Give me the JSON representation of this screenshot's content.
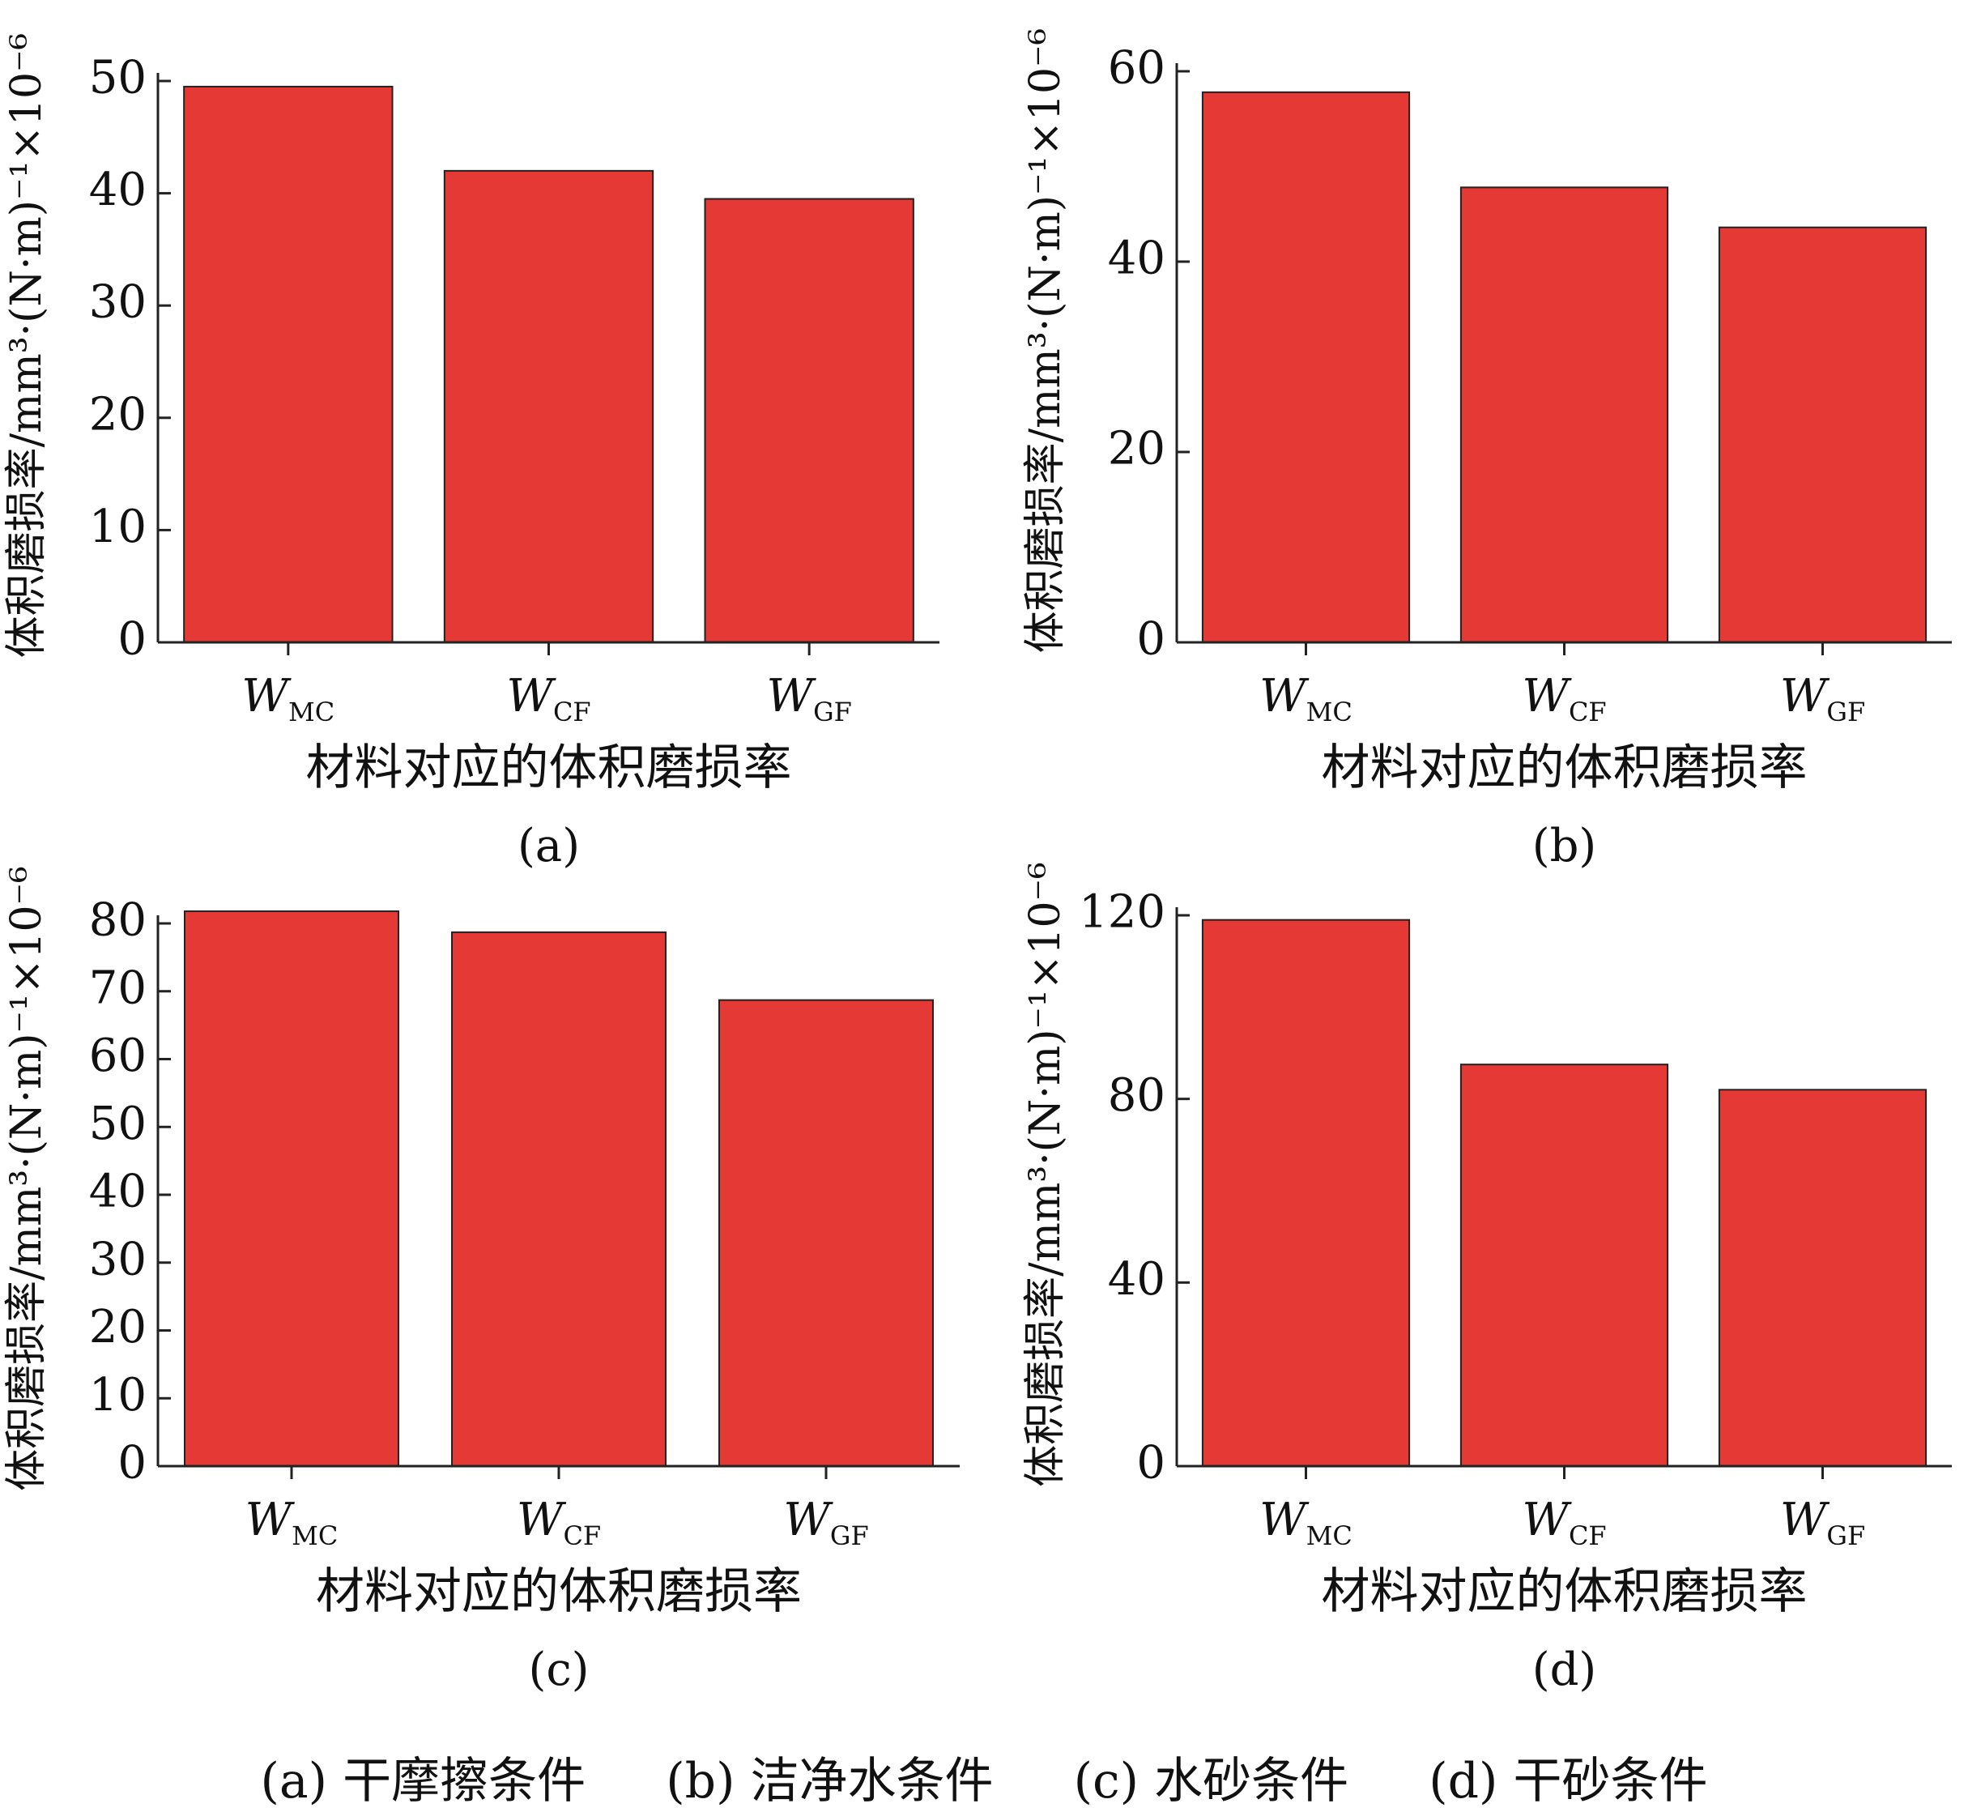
{
  "colors": {
    "bar": "#E53935",
    "axis": "#222222"
  },
  "chart_data": [
    {
      "type": "bar",
      "panel_label": "(a)",
      "categories": [
        {
          "base": "W",
          "sub": "MC"
        },
        {
          "base": "W",
          "sub": "CF"
        },
        {
          "base": "W",
          "sub": "GF"
        }
      ],
      "values": [
        49.5,
        42.0,
        39.5
      ],
      "xlabel": "材料对应的体积磨损率",
      "ylabel": "体积磨损率/mm³·(N·m)⁻¹×10⁻⁶",
      "ylim": [
        0,
        50
      ],
      "yticks": [
        0,
        10,
        20,
        30,
        40,
        50
      ]
    },
    {
      "type": "bar",
      "panel_label": "(b)",
      "categories": [
        {
          "base": "W",
          "sub": "MC"
        },
        {
          "base": "W",
          "sub": "CF"
        },
        {
          "base": "W",
          "sub": "GF"
        }
      ],
      "values": [
        57.8,
        47.8,
        43.6
      ],
      "xlabel": "材料对应的体积磨损率",
      "ylabel": "体积磨损率/mm³·(N·m)⁻¹×10⁻⁶",
      "ylim": [
        0,
        60
      ],
      "yticks": [
        0,
        20,
        40,
        60
      ]
    },
    {
      "type": "bar",
      "panel_label": "(c)",
      "categories": [
        {
          "base": "W",
          "sub": "MC"
        },
        {
          "base": "W",
          "sub": "CF"
        },
        {
          "base": "W",
          "sub": "GF"
        }
      ],
      "values": [
        81.8,
        78.7,
        68.7
      ],
      "xlabel": "材料对应的体积磨损率",
      "ylabel": "体积磨损率/mm³·(N·m)⁻¹×10⁻⁶",
      "ylim": [
        0,
        80
      ],
      "yticks": [
        0,
        10,
        20,
        30,
        40,
        50,
        60,
        70,
        80
      ]
    },
    {
      "type": "bar",
      "panel_label": "(d)",
      "categories": [
        {
          "base": "W",
          "sub": "MC"
        },
        {
          "base": "W",
          "sub": "CF"
        },
        {
          "base": "W",
          "sub": "GF"
        }
      ],
      "values": [
        119,
        87.5,
        82
      ],
      "xlabel": "材料对应的体积磨损率",
      "ylabel": "体积磨损率/mm³·(N·m)⁻¹×10⁻⁶",
      "ylim": [
        0,
        120
      ],
      "yticks": [
        0,
        40,
        80,
        120
      ]
    }
  ],
  "caption": {
    "a": "(a) 干摩擦条件",
    "b": "(b) 洁净水条件",
    "c": "(c) 水砂条件",
    "d": "(d) 干砂条件"
  }
}
